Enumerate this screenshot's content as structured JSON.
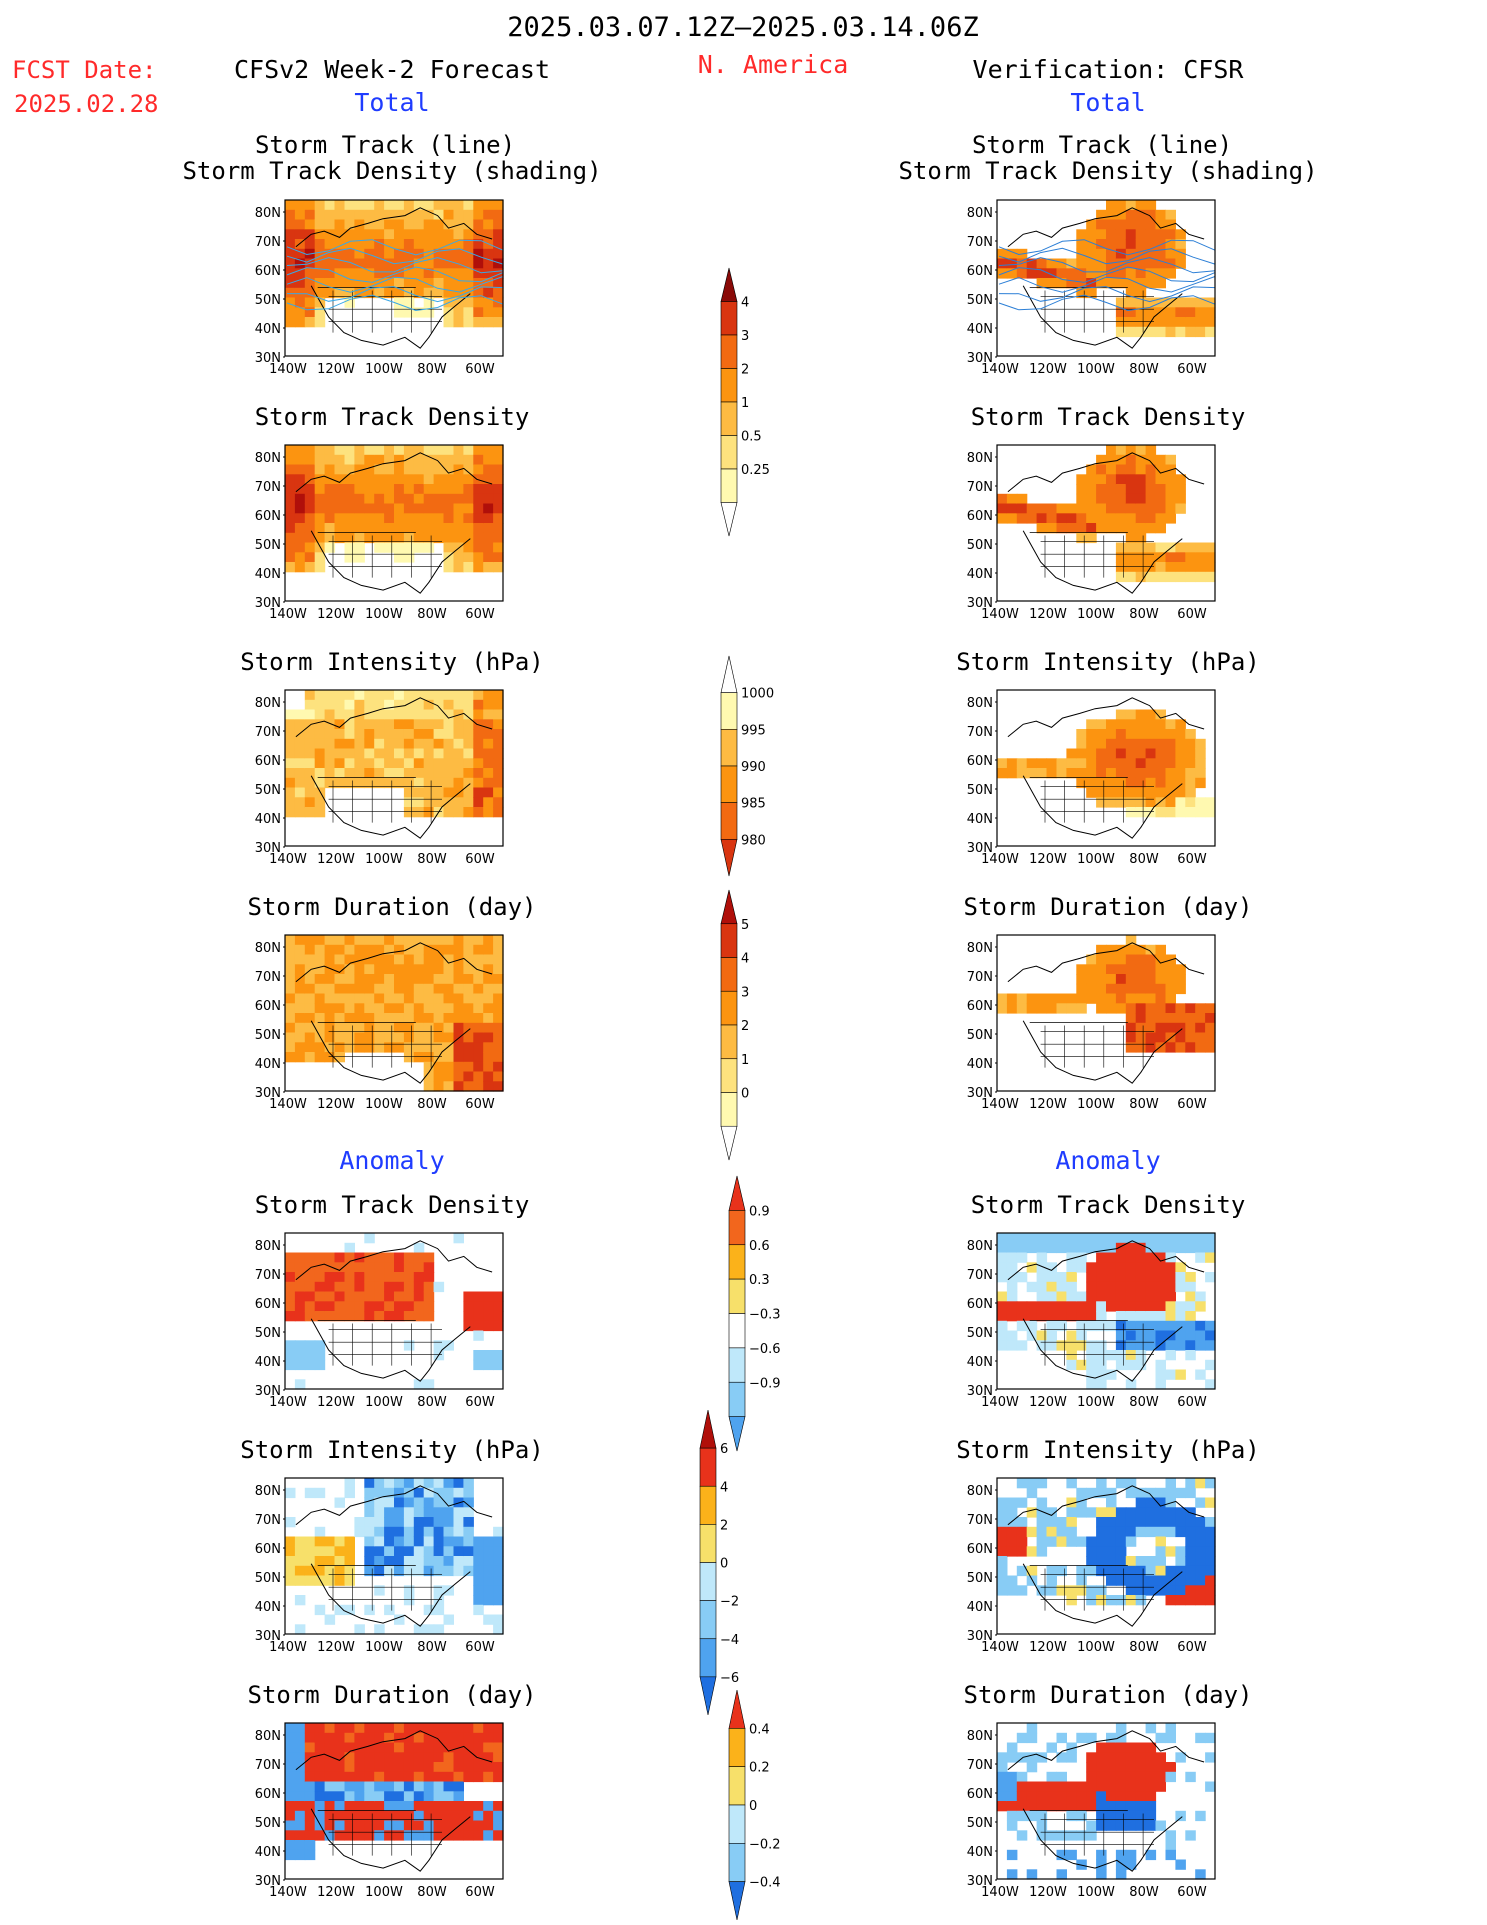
{
  "header": {
    "title": "2025.03.07.12Z–2025.03.14.06Z",
    "fcst_label": "FCST Date:",
    "fcst_date": "2025.02.28",
    "region": "N. America"
  },
  "columns": {
    "left_title": "CFSv2 Week-2 Forecast",
    "right_title": "Verification: CFSR",
    "total_label": "Total",
    "anomaly_label": "Anomaly"
  },
  "panels": {
    "track_line": "Storm Track (line)",
    "track_shading": "Storm Track Density (shading)",
    "density": "Storm Track Density",
    "intensity": "Storm Intensity (hPa)",
    "duration": "Storm Duration (day)"
  },
  "axes": {
    "lat_labels": [
      "80N",
      "70N",
      "60N",
      "50N",
      "40N",
      "30N"
    ],
    "lon_labels": [
      "140W",
      "120W",
      "100W",
      "80W",
      "60W"
    ]
  },
  "colorbars": {
    "density": [
      "0.25",
      "0.5",
      "1",
      "2",
      "3",
      "4"
    ],
    "intensity": [
      "1000",
      "995",
      "990",
      "985",
      "980"
    ],
    "duration": [
      "0",
      "1",
      "2",
      "3",
      "4",
      "5"
    ],
    "anom_density": [
      "0.9",
      "0.6",
      "0.3",
      "−0.3",
      "−0.6",
      "−0.9"
    ],
    "anom_intensity": [
      "6",
      "4",
      "2",
      "0",
      "−2",
      "−4",
      "−6"
    ],
    "anom_duration": [
      "0.4",
      "0.2",
      "0",
      "−0.2",
      "−0.4"
    ]
  },
  "colors": {
    "seq": [
      "#fff9b0",
      "#fde27e",
      "#fdbb43",
      "#fc9410",
      "#f26a12",
      "#d93510",
      "#b00f0a",
      "#8a0a08"
    ],
    "div_warm": [
      "#f7e06a",
      "#fbb21a",
      "#f2661d",
      "#e8321b"
    ],
    "div_cool": [
      "#bfe8fa",
      "#88ccf5",
      "#4fa3ef",
      "#1f6fe0"
    ]
  }
}
